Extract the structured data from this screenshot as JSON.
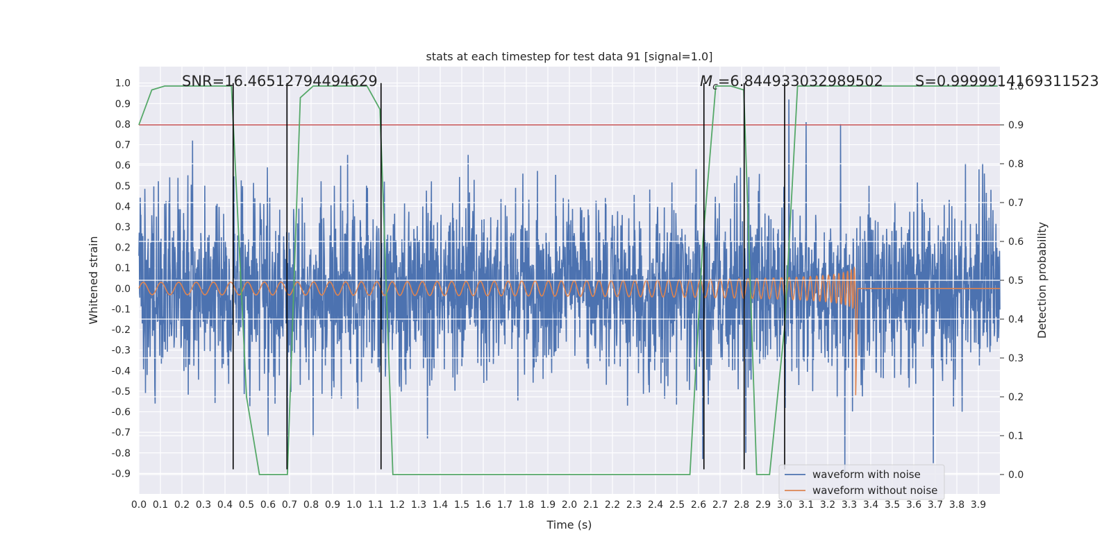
{
  "chart_data": {
    "type": "line",
    "title": "stats at each timestep for test data 91 [signal=1.0]",
    "xlabel": "Time (s)",
    "ylabel": "Whitened strain",
    "y2label": "Detection probability",
    "xlim": [
      0.0,
      4.0
    ],
    "ylim": [
      -1.0,
      1.08
    ],
    "y2lim": [
      -0.05,
      1.05
    ],
    "x_ticks": [
      "0.0",
      "0.1",
      "0.2",
      "0.3",
      "0.4",
      "0.5",
      "0.6",
      "0.7",
      "0.8",
      "0.9",
      "1.0",
      "1.1",
      "1.2",
      "1.3",
      "1.4",
      "1.5",
      "1.6",
      "1.7",
      "1.8",
      "1.9",
      "2.0",
      "2.1",
      "2.2",
      "2.3",
      "2.4",
      "2.5",
      "2.6",
      "2.7",
      "2.8",
      "2.9",
      "3.0",
      "3.1",
      "3.2",
      "3.3",
      "3.4",
      "3.5",
      "3.6",
      "3.7",
      "3.8",
      "3.9"
    ],
    "y_ticks": [
      "1.0",
      "0.9",
      "0.8",
      "0.7",
      "0.6",
      "0.5",
      "0.4",
      "0.3",
      "0.2",
      "0.1",
      "0.0",
      "-0.1",
      "-0.2",
      "-0.3",
      "-0.4",
      "-0.5",
      "-0.6",
      "-0.7",
      "-0.8",
      "-0.9"
    ],
    "y2_ticks": [
      "1.0",
      "0.9",
      "0.8",
      "0.7",
      "0.6",
      "0.5",
      "0.4",
      "0.3",
      "0.2",
      "0.1",
      "0.0"
    ],
    "grid": true,
    "legend_position": "lower-right",
    "annotations": {
      "snr": "SNR=16.46512794494629",
      "mc_symbol": "M",
      "mc_sub": "c",
      "mc_value": "=6.844933032989502",
      "s": "S=0.9999914169311523"
    },
    "series": [
      {
        "name": "waveform with noise",
        "color": "#4c72b0",
        "x_range": [
          0.0,
          4.0
        ],
        "envelope": "approximately -0.5 to 0.5 with spikes",
        "spikes": [
          {
            "x": 0.25,
            "y": 1.0
          },
          {
            "x": 0.25,
            "y": 0.72
          },
          {
            "x": 0.69,
            "y": 0.52
          },
          {
            "x": 0.69,
            "y": -0.83
          },
          {
            "x": 0.6,
            "y": -0.72
          },
          {
            "x": 0.81,
            "y": -0.72
          },
          {
            "x": 0.97,
            "y": 0.65
          },
          {
            "x": 1.14,
            "y": 0.52
          },
          {
            "x": 1.34,
            "y": -0.73
          },
          {
            "x": 1.53,
            "y": 0.87
          },
          {
            "x": 1.53,
            "y": 0.65
          },
          {
            "x": 2.27,
            "y": 0.6
          },
          {
            "x": 2.27,
            "y": -0.57
          },
          {
            "x": 2.62,
            "y": -0.83
          },
          {
            "x": 2.82,
            "y": -0.8
          },
          {
            "x": 3.02,
            "y": 0.92
          },
          {
            "x": 3.1,
            "y": 0.81
          },
          {
            "x": 3.26,
            "y": 0.8
          },
          {
            "x": 3.28,
            "y": -0.9
          },
          {
            "x": 3.69,
            "y": -0.85
          },
          {
            "x": 3.84,
            "y": 0.61
          },
          {
            "x": 3.92,
            "y": 0.61
          }
        ]
      },
      {
        "name": "waveform without noise",
        "color": "#dd8452",
        "chirp": {
          "start": 0.0,
          "merger": 3.33,
          "amplitude_start": 0.03,
          "amplitude_at_merger": 0.3,
          "min_amplitude_at_merger": -0.52,
          "after_merger": 0.0
        }
      },
      {
        "name": "detection probability",
        "color": "#55a868",
        "axis": "right",
        "x": [
          0.0,
          0.06,
          0.12,
          0.18,
          0.24,
          0.3,
          0.36,
          0.43,
          0.5,
          0.56,
          0.62,
          0.69,
          0.75,
          0.81,
          0.87,
          0.93,
          1.0,
          1.06,
          1.12,
          1.18,
          1.24,
          1.68,
          2.5,
          2.56,
          2.62,
          2.68,
          2.75,
          2.81,
          2.87,
          2.93,
          3.0,
          3.06,
          3.12,
          3.3,
          3.5,
          3.7,
          3.9,
          3.99
        ],
        "y": [
          0.9,
          0.99,
          1.0,
          1.0,
          1.0,
          1.0,
          1.0,
          1.0,
          0.2,
          0.0,
          0.0,
          0.0,
          0.97,
          1.0,
          1.0,
          1.0,
          1.0,
          1.0,
          0.94,
          0.0,
          0.0,
          0.0,
          0.0,
          0.0,
          0.6,
          1.0,
          1.0,
          0.99,
          0.0,
          0.0,
          0.38,
          1.0,
          1.0,
          1.0,
          1.0,
          1.0,
          1.0,
          1.0
        ]
      }
    ],
    "threshold": {
      "value": 0.9,
      "axis": "right",
      "color": "#c44e52"
    },
    "vertical_markers": {
      "x": [
        0.438,
        0.688,
        1.125,
        2.625,
        2.812,
        3.0
      ],
      "y_bottom": -0.88,
      "y_top": 1.0,
      "color": "#000000"
    }
  }
}
